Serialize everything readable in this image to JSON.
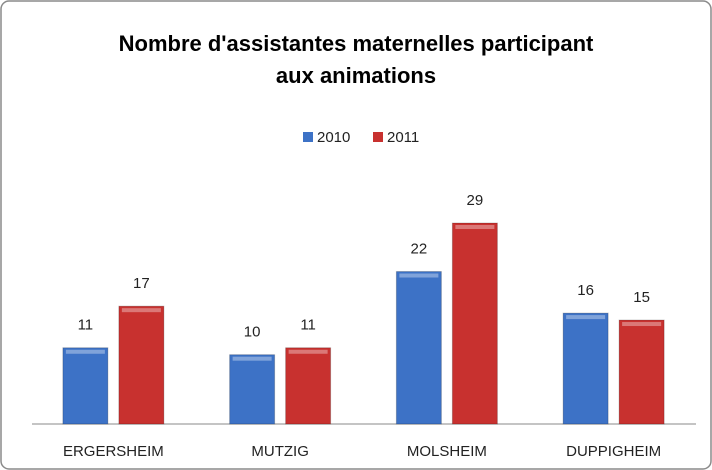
{
  "chart_data": {
    "type": "bar",
    "title": "Nombre d'assistantes maternelles participant aux animations",
    "categories": [
      "ERGERSHEIM",
      "MUTZIG",
      "MOLSHEIM",
      "DUPPIGHEIM"
    ],
    "series": [
      {
        "name": "2010",
        "color": "#3d72c6",
        "values": [
          11,
          10,
          22,
          16
        ]
      },
      {
        "name": "2011",
        "color": "#c8312f",
        "values": [
          17,
          11,
          29,
          15
        ]
      }
    ],
    "legend": "top"
  }
}
